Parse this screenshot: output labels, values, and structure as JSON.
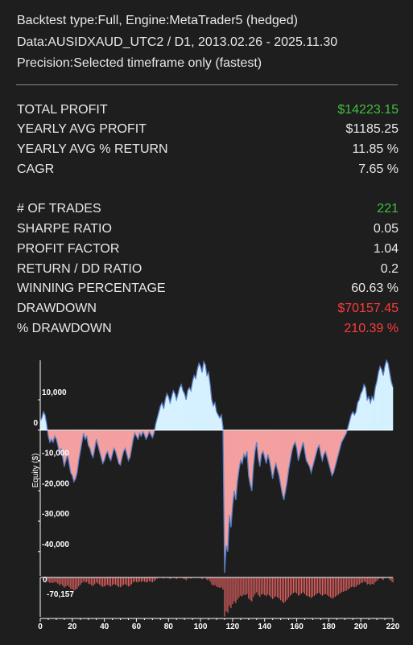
{
  "header": {
    "line1": "Backtest type:Full, Engine:MetaTrader5 (hedged)",
    "line2": "Data:AUSIDXAUD_UTC2 / D1, 2013.02.26 - 2025.11.30",
    "line3": "Precision:Selected timeframe only (fastest)"
  },
  "stats": [
    {
      "label": "TOTAL PROFIT",
      "value": "$14223.15",
      "color": "#3fbf3f"
    },
    {
      "label": "YEARLY AVG PROFIT",
      "value": "$1185.25",
      "color": "#e8e8e8"
    },
    {
      "label": "YEARLY AVG % RETURN",
      "value": "11.85 %",
      "color": "#e8e8e8"
    },
    {
      "label": "CAGR",
      "value": "7.65 %",
      "color": "#e8e8e8"
    },
    {
      "label": "# OF TRADES",
      "value": "221",
      "color": "#3fbf3f"
    },
    {
      "label": "SHARPE RATIO",
      "value": "0.05",
      "color": "#e8e8e8"
    },
    {
      "label": "PROFIT FACTOR",
      "value": "1.04",
      "color": "#e8e8e8"
    },
    {
      "label": "RETURN / DD RATIO",
      "value": "0.2",
      "color": "#e8e8e8"
    },
    {
      "label": "WINNING PERCENTAGE",
      "value": "60.63 %",
      "color": "#e8e8e8"
    },
    {
      "label": "DRAWDOWN",
      "value": "$70157.45",
      "color": "#ff3b3b"
    },
    {
      "label": "% DRAWDOWN",
      "value": "210.39 %",
      "color": "#ff3b3b"
    }
  ],
  "chart_data": {
    "type": "area",
    "ylabel": "Equity ($)",
    "xlim": [
      0,
      220
    ],
    "ylim": [
      -48000,
      23000
    ],
    "yticks": [
      10000,
      0,
      -10000,
      -20000,
      -30000,
      -40000
    ],
    "ytick_labels": [
      "10,000",
      "0",
      "-10,000",
      "-20,000",
      "-30,000",
      "-40,000"
    ],
    "xticks": [
      0,
      20,
      40,
      60,
      80,
      100,
      120,
      140,
      160,
      180,
      200,
      220
    ],
    "positive_color": "#d6f1ff",
    "negative_color": "#f4a0a0",
    "line_color": "#5a7fc8",
    "equity": [
      [
        0,
        3000
      ],
      [
        1,
        4000
      ],
      [
        2,
        6000
      ],
      [
        3,
        5000
      ],
      [
        4,
        2000
      ],
      [
        5,
        -2000
      ],
      [
        6,
        -4000
      ],
      [
        7,
        -3000
      ],
      [
        8,
        -4000
      ],
      [
        9,
        -2000
      ],
      [
        10,
        -3000
      ],
      [
        11,
        -5000
      ],
      [
        12,
        -8000
      ],
      [
        13,
        -6000
      ],
      [
        14,
        -9000
      ],
      [
        15,
        -12000
      ],
      [
        16,
        -10000
      ],
      [
        17,
        -8000
      ],
      [
        18,
        -11000
      ],
      [
        19,
        -14000
      ],
      [
        20,
        -15000
      ],
      [
        21,
        -17000
      ],
      [
        22,
        -16000
      ],
      [
        23,
        -14000
      ],
      [
        24,
        -10000
      ],
      [
        25,
        -7000
      ],
      [
        26,
        -4000
      ],
      [
        27,
        -1000
      ],
      [
        28,
        -3000
      ],
      [
        29,
        -2000
      ],
      [
        30,
        -5000
      ],
      [
        31,
        -6000
      ],
      [
        32,
        -8000
      ],
      [
        33,
        -9000
      ],
      [
        34,
        -6000
      ],
      [
        35,
        -3000
      ],
      [
        36,
        -5000
      ],
      [
        37,
        -7000
      ],
      [
        38,
        -9000
      ],
      [
        39,
        -11000
      ],
      [
        40,
        -10000
      ],
      [
        41,
        -8000
      ],
      [
        42,
        -7000
      ],
      [
        43,
        -9000
      ],
      [
        44,
        -10000
      ],
      [
        45,
        -8000
      ],
      [
        46,
        -6000
      ],
      [
        47,
        -7000
      ],
      [
        48,
        -9000
      ],
      [
        49,
        -11000
      ],
      [
        50,
        -11500
      ],
      [
        51,
        -9000
      ],
      [
        52,
        -7000
      ],
      [
        53,
        -6000
      ],
      [
        54,
        -8000
      ],
      [
        55,
        -10000
      ],
      [
        56,
        -9000
      ],
      [
        57,
        -6000
      ],
      [
        58,
        -3000
      ],
      [
        59,
        -1000
      ],
      [
        60,
        -2000
      ],
      [
        61,
        -3000
      ],
      [
        62,
        -1000
      ],
      [
        63,
        -2000
      ],
      [
        64,
        -500
      ],
      [
        65,
        -1500
      ],
      [
        66,
        -3000
      ],
      [
        67,
        -2000
      ],
      [
        68,
        -500
      ],
      [
        69,
        -1500
      ],
      [
        70,
        -2500
      ],
      [
        71,
        -1000
      ],
      [
        72,
        2000
      ],
      [
        73,
        4000
      ],
      [
        74,
        6000
      ],
      [
        75,
        8000
      ],
      [
        76,
        9000
      ],
      [
        77,
        7000
      ],
      [
        78,
        10000
      ],
      [
        79,
        12000
      ],
      [
        80,
        11000
      ],
      [
        81,
        9000
      ],
      [
        82,
        11000
      ],
      [
        83,
        13000
      ],
      [
        84,
        12000
      ],
      [
        85,
        10000
      ],
      [
        86,
        12000
      ],
      [
        87,
        14000
      ],
      [
        88,
        15000
      ],
      [
        89,
        13000
      ],
      [
        90,
        12000
      ],
      [
        91,
        10000
      ],
      [
        92,
        13000
      ],
      [
        93,
        14000
      ],
      [
        94,
        13000
      ],
      [
        95,
        16000
      ],
      [
        96,
        18000
      ],
      [
        97,
        17000
      ],
      [
        98,
        20000
      ],
      [
        99,
        22000
      ],
      [
        100,
        21000
      ],
      [
        101,
        19000
      ],
      [
        102,
        22500
      ],
      [
        103,
        21500
      ],
      [
        104,
        18000
      ],
      [
        105,
        19000
      ],
      [
        106,
        15000
      ],
      [
        107,
        10000
      ],
      [
        108,
        8000
      ],
      [
        109,
        9000
      ],
      [
        110,
        6000
      ],
      [
        111,
        5000
      ],
      [
        112,
        4000
      ],
      [
        113,
        5000
      ],
      [
        114,
        1000
      ],
      [
        115,
        -47000
      ],
      [
        116,
        -38000
      ],
      [
        117,
        -40000
      ],
      [
        118,
        -28000
      ],
      [
        119,
        -32000
      ],
      [
        120,
        -25000
      ],
      [
        121,
        -20000
      ],
      [
        122,
        -23000
      ],
      [
        123,
        -17000
      ],
      [
        124,
        -13000
      ],
      [
        125,
        -10000
      ],
      [
        126,
        -11000
      ],
      [
        127,
        -8000
      ],
      [
        128,
        -9000
      ],
      [
        129,
        -7000
      ],
      [
        130,
        -15000
      ],
      [
        131,
        -18000
      ],
      [
        132,
        -20000
      ],
      [
        133,
        -12000
      ],
      [
        134,
        -7000
      ],
      [
        135,
        -4000
      ],
      [
        136,
        -9000
      ],
      [
        137,
        -12000
      ],
      [
        138,
        -8000
      ],
      [
        139,
        -7000
      ],
      [
        140,
        -9000
      ],
      [
        141,
        -11000
      ],
      [
        142,
        -8000
      ],
      [
        143,
        -10000
      ],
      [
        144,
        -13000
      ],
      [
        145,
        -16000
      ],
      [
        146,
        -13000
      ],
      [
        147,
        -11000
      ],
      [
        148,
        -13000
      ],
      [
        149,
        -15000
      ],
      [
        150,
        -18000
      ],
      [
        151,
        -21000
      ],
      [
        152,
        -23000
      ],
      [
        153,
        -20000
      ],
      [
        154,
        -17000
      ],
      [
        155,
        -13000
      ],
      [
        156,
        -10000
      ],
      [
        157,
        -7000
      ],
      [
        158,
        -5000
      ],
      [
        159,
        -4000
      ],
      [
        160,
        -6000
      ],
      [
        161,
        -10000
      ],
      [
        162,
        -8000
      ],
      [
        163,
        -6000
      ],
      [
        164,
        -4000
      ],
      [
        165,
        -7000
      ],
      [
        166,
        -10000
      ],
      [
        167,
        -11000
      ],
      [
        168,
        -12000
      ],
      [
        169,
        -14000
      ],
      [
        170,
        -12000
      ],
      [
        171,
        -10000
      ],
      [
        172,
        -8000
      ],
      [
        173,
        -6000
      ],
      [
        174,
        -5000
      ],
      [
        175,
        -8000
      ],
      [
        176,
        -10000
      ],
      [
        177,
        -8000
      ],
      [
        178,
        -7000
      ],
      [
        179,
        -9000
      ],
      [
        180,
        -11000
      ],
      [
        181,
        -13000
      ],
      [
        182,
        -15000
      ],
      [
        183,
        -14000
      ],
      [
        184,
        -12000
      ],
      [
        185,
        -10000
      ],
      [
        186,
        -8000
      ],
      [
        187,
        -6000
      ],
      [
        188,
        -4000
      ],
      [
        189,
        -3000
      ],
      [
        190,
        -2000
      ],
      [
        191,
        -1000
      ],
      [
        192,
        1000
      ],
      [
        193,
        3000
      ],
      [
        194,
        5000
      ],
      [
        195,
        6000
      ],
      [
        196,
        5000
      ],
      [
        197,
        6000
      ],
      [
        198,
        9000
      ],
      [
        199,
        10000
      ],
      [
        200,
        12000
      ],
      [
        201,
        13000
      ],
      [
        202,
        15000
      ],
      [
        203,
        14000
      ],
      [
        204,
        10000
      ],
      [
        205,
        11000
      ],
      [
        206,
        9000
      ],
      [
        207,
        11000
      ],
      [
        208,
        10000
      ],
      [
        209,
        14000
      ],
      [
        210,
        16000
      ],
      [
        211,
        19000
      ],
      [
        212,
        21000
      ],
      [
        213,
        20000
      ],
      [
        214,
        18000
      ],
      [
        215,
        21000
      ],
      [
        216,
        23000
      ],
      [
        217,
        22000
      ],
      [
        218,
        19000
      ],
      [
        219,
        16000
      ],
      [
        220,
        14200
      ]
    ],
    "drawdown_ylabels": [
      "0",
      "-70,157"
    ],
    "drawdown_min": -70157,
    "drawdown_color": "#e06060"
  }
}
